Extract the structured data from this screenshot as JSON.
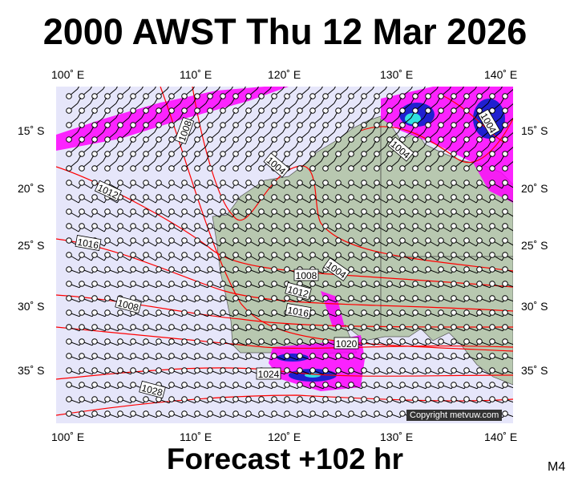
{
  "title": "2000 AWST Thu 12 Mar 2026",
  "footer": "Forecast +102 hr",
  "model": "M4",
  "copyright": "Copyright metvuw.com",
  "lon_labels": [
    "100˚ E",
    "110˚ E",
    "120˚ E",
    "130˚ E",
    "140˚ E"
  ],
  "lat_labels": [
    "15˚ S",
    "20˚ S",
    "25˚ S",
    "30˚ S",
    "35˚ S"
  ],
  "isobar_labels": [
    "1008",
    "1004",
    "1012",
    "1016",
    "1004",
    "1004",
    "1008",
    "1004",
    "1012",
    "1016",
    "1008",
    "1020",
    "1024",
    "1028"
  ],
  "colors": {
    "ocean": "#e6e6fa",
    "land": "#b8c8b0",
    "isobar": "#ff0000",
    "rain": "#ff00ff"
  }
}
